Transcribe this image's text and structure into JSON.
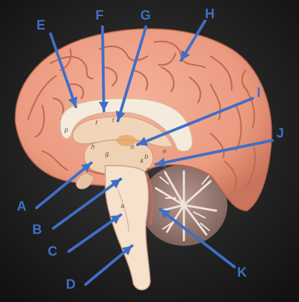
{
  "diagram": {
    "title": "Midsagittal brain model with labeled arrows",
    "arrow_color": "#3f6fc6",
    "labels": [
      "A",
      "B",
      "C",
      "D",
      "E",
      "F",
      "G",
      "H",
      "I",
      "J",
      "K"
    ],
    "model_markers": [
      "p",
      "f",
      "t",
      "h",
      "g",
      "n",
      "b",
      "a",
      "e",
      "k",
      "a"
    ]
  }
}
